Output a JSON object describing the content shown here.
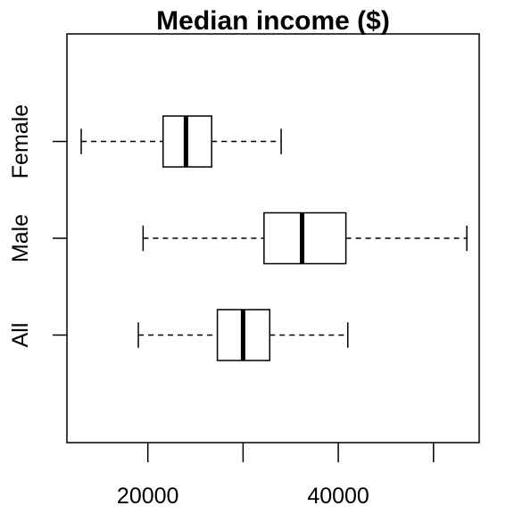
{
  "chart_data": {
    "type": "boxplot",
    "orientation": "horizontal",
    "title": "Median income ($)",
    "xlabel": "",
    "ylabel": "",
    "xlim": [
      11500,
      54800
    ],
    "x_ticks": [
      20000,
      30000,
      40000,
      50000
    ],
    "x_tick_labels": [
      "20000",
      "",
      "40000",
      ""
    ],
    "grid": false,
    "legend": "none",
    "categories": [
      "All",
      "Male",
      "Female"
    ],
    "boxes": [
      {
        "label": "All",
        "min": 19000,
        "q1": 27300,
        "median": 30000,
        "q3": 32800,
        "max": 41000
      },
      {
        "label": "Male",
        "min": 19500,
        "q1": 32200,
        "median": 36200,
        "q3": 40800,
        "max": 53500
      },
      {
        "label": "Female",
        "min": 13000,
        "q1": 21600,
        "median": 24000,
        "q3": 26700,
        "max": 34000
      }
    ]
  }
}
